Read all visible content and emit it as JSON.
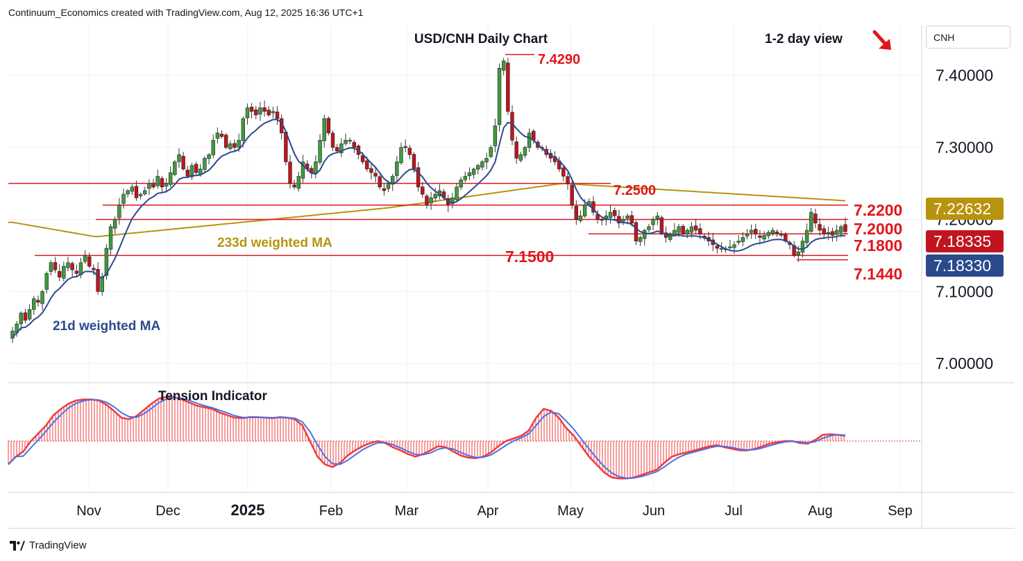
{
  "header": {
    "attribution": "Continuum_Economics created with TradingView.com, Aug 12, 2025 16:36 UTC+1"
  },
  "symbol_box": {
    "label": "CNH"
  },
  "brand": {
    "name": "TradingView"
  },
  "colors": {
    "up": "#3f9b3f",
    "down": "#c0151f",
    "level": "#e0161b",
    "ma21": "#2a4a8c",
    "ma233": "#b8930e",
    "tension_red": "#ef3b3b",
    "tension_blue": "#4d6fe8",
    "axis_text": "#131722",
    "grid": "#eef0f3"
  },
  "view_arrow": {
    "icon": "arrow-down-right-icon",
    "color": "#e0161b"
  },
  "chart_data": [
    {
      "type": "candlestick",
      "title": "USD/CNH Daily Chart",
      "subtitle": "1-2 day view",
      "x_ticks": [
        "Nov",
        "Dec",
        "2025",
        "Feb",
        "Mar",
        "Apr",
        "May",
        "Jun",
        "Jul",
        "Aug",
        "Sep"
      ],
      "y_ticks": [
        "7.00000",
        "7.10000",
        "7.20000",
        "7.30000",
        "7.40000"
      ],
      "ylim": [
        6.98,
        7.47
      ],
      "grid": true,
      "ohlc_series": [
        7.045,
        7.055,
        7.07,
        7.06,
        7.075,
        7.09,
        7.085,
        7.1,
        7.125,
        7.14,
        7.13,
        7.12,
        7.135,
        7.14,
        7.13,
        7.125,
        7.14,
        7.15,
        7.135,
        7.13,
        7.1,
        7.12,
        7.16,
        7.19,
        7.2,
        7.22,
        7.235,
        7.24,
        7.245,
        7.23,
        7.235,
        7.24,
        7.25,
        7.245,
        7.26,
        7.245,
        7.25,
        7.265,
        7.28,
        7.29,
        7.27,
        7.26,
        7.275,
        7.265,
        7.27,
        7.285,
        7.29,
        7.31,
        7.32,
        7.315,
        7.3,
        7.305,
        7.3,
        7.31,
        7.34,
        7.355,
        7.35,
        7.345,
        7.355,
        7.35,
        7.345,
        7.35,
        7.34,
        7.32,
        7.28,
        7.25,
        7.245,
        7.26,
        7.28,
        7.27,
        7.265,
        7.28,
        7.31,
        7.34,
        7.32,
        7.3,
        7.295,
        7.305,
        7.31,
        7.31,
        7.3,
        7.29,
        7.28,
        7.27,
        7.265,
        7.26,
        7.245,
        7.24,
        7.25,
        7.26,
        7.28,
        7.3,
        7.3,
        7.29,
        7.27,
        7.245,
        7.235,
        7.22,
        7.23,
        7.235,
        7.24,
        7.23,
        7.22,
        7.23,
        7.245,
        7.255,
        7.26,
        7.265,
        7.27,
        7.275,
        7.28,
        7.285,
        7.3,
        7.33,
        7.41,
        7.42,
        7.35,
        7.31,
        7.285,
        7.29,
        7.3,
        7.32,
        7.31,
        7.3,
        7.3,
        7.29,
        7.285,
        7.28,
        7.27,
        7.26,
        7.25,
        7.22,
        7.2,
        7.205,
        7.22,
        7.225,
        7.21,
        7.2,
        7.2,
        7.205,
        7.21,
        7.205,
        7.195,
        7.2,
        7.205,
        7.195,
        7.17,
        7.175,
        7.185,
        7.19,
        7.2,
        7.205,
        7.18,
        7.175,
        7.18,
        7.185,
        7.19,
        7.18,
        7.185,
        7.19,
        7.185,
        7.18,
        7.175,
        7.17,
        7.165,
        7.16,
        7.16,
        7.158,
        7.162,
        7.165,
        7.17,
        7.175,
        7.18,
        7.185,
        7.18,
        7.175,
        7.178,
        7.182,
        7.185,
        7.18,
        7.178,
        7.17,
        7.165,
        7.15,
        7.155,
        7.17,
        7.185,
        7.21,
        7.195,
        7.185,
        7.18,
        7.182,
        7.178,
        7.185,
        7.19,
        7.183
      ],
      "levels": [
        {
          "label": "7.4290",
          "value": 7.429
        },
        {
          "label": "7.2500",
          "value": 7.25
        },
        {
          "label": "7.2200",
          "value": 7.22
        },
        {
          "label": "7.2000",
          "value": 7.2
        },
        {
          "label": "7.1800",
          "value": 7.18
        },
        {
          "label": "7.1500",
          "value": 7.15
        },
        {
          "label": "7.1440",
          "value": 7.144
        }
      ],
      "price_tags": [
        {
          "label": "7.22632",
          "value": 7.22632,
          "color": "#b8930e"
        },
        {
          "label": "7.18335",
          "value": 7.18335,
          "color": "#c0151f"
        },
        {
          "label": "7.18330",
          "value": 7.1833,
          "color": "#2a4a8c"
        }
      ],
      "series": [
        {
          "name": "21d weighted MA",
          "color": "#2a4a8c"
        },
        {
          "name": "233d weighted MA",
          "color": "#b8930e"
        }
      ]
    },
    {
      "type": "histogram",
      "title": "Tension Indicator",
      "values": [
        -0.45,
        -0.3,
        -0.2,
        0.0,
        0.15,
        0.3,
        0.5,
        0.62,
        0.72,
        0.78,
        0.8,
        0.8,
        0.78,
        0.7,
        0.58,
        0.45,
        0.42,
        0.48,
        0.6,
        0.72,
        0.82,
        0.85,
        0.84,
        0.8,
        0.74,
        0.68,
        0.65,
        0.62,
        0.55,
        0.5,
        0.45,
        0.44,
        0.46,
        0.46,
        0.45,
        0.44,
        0.46,
        0.45,
        0.42,
        0.3,
        0.0,
        -0.3,
        -0.45,
        -0.5,
        -0.42,
        -0.28,
        -0.18,
        -0.1,
        -0.04,
        0.0,
        -0.04,
        -0.12,
        -0.18,
        -0.25,
        -0.3,
        -0.25,
        -0.18,
        -0.1,
        -0.12,
        -0.2,
        -0.28,
        -0.32,
        -0.33,
        -0.3,
        -0.22,
        -0.1,
        0.0,
        0.05,
        0.1,
        0.2,
        0.45,
        0.62,
        0.58,
        0.45,
        0.25,
        0.1,
        -0.1,
        -0.3,
        -0.45,
        -0.6,
        -0.7,
        -0.72,
        -0.72,
        -0.7,
        -0.65,
        -0.6,
        -0.55,
        -0.42,
        -0.3,
        -0.25,
        -0.22,
        -0.18,
        -0.14,
        -0.1,
        -0.08,
        -0.12,
        -0.15,
        -0.18,
        -0.18,
        -0.15,
        -0.1,
        -0.05,
        -0.02,
        0.0,
        0.0,
        -0.04,
        -0.05,
        0.02,
        0.12,
        0.13,
        0.12,
        0.1
      ]
    }
  ]
}
